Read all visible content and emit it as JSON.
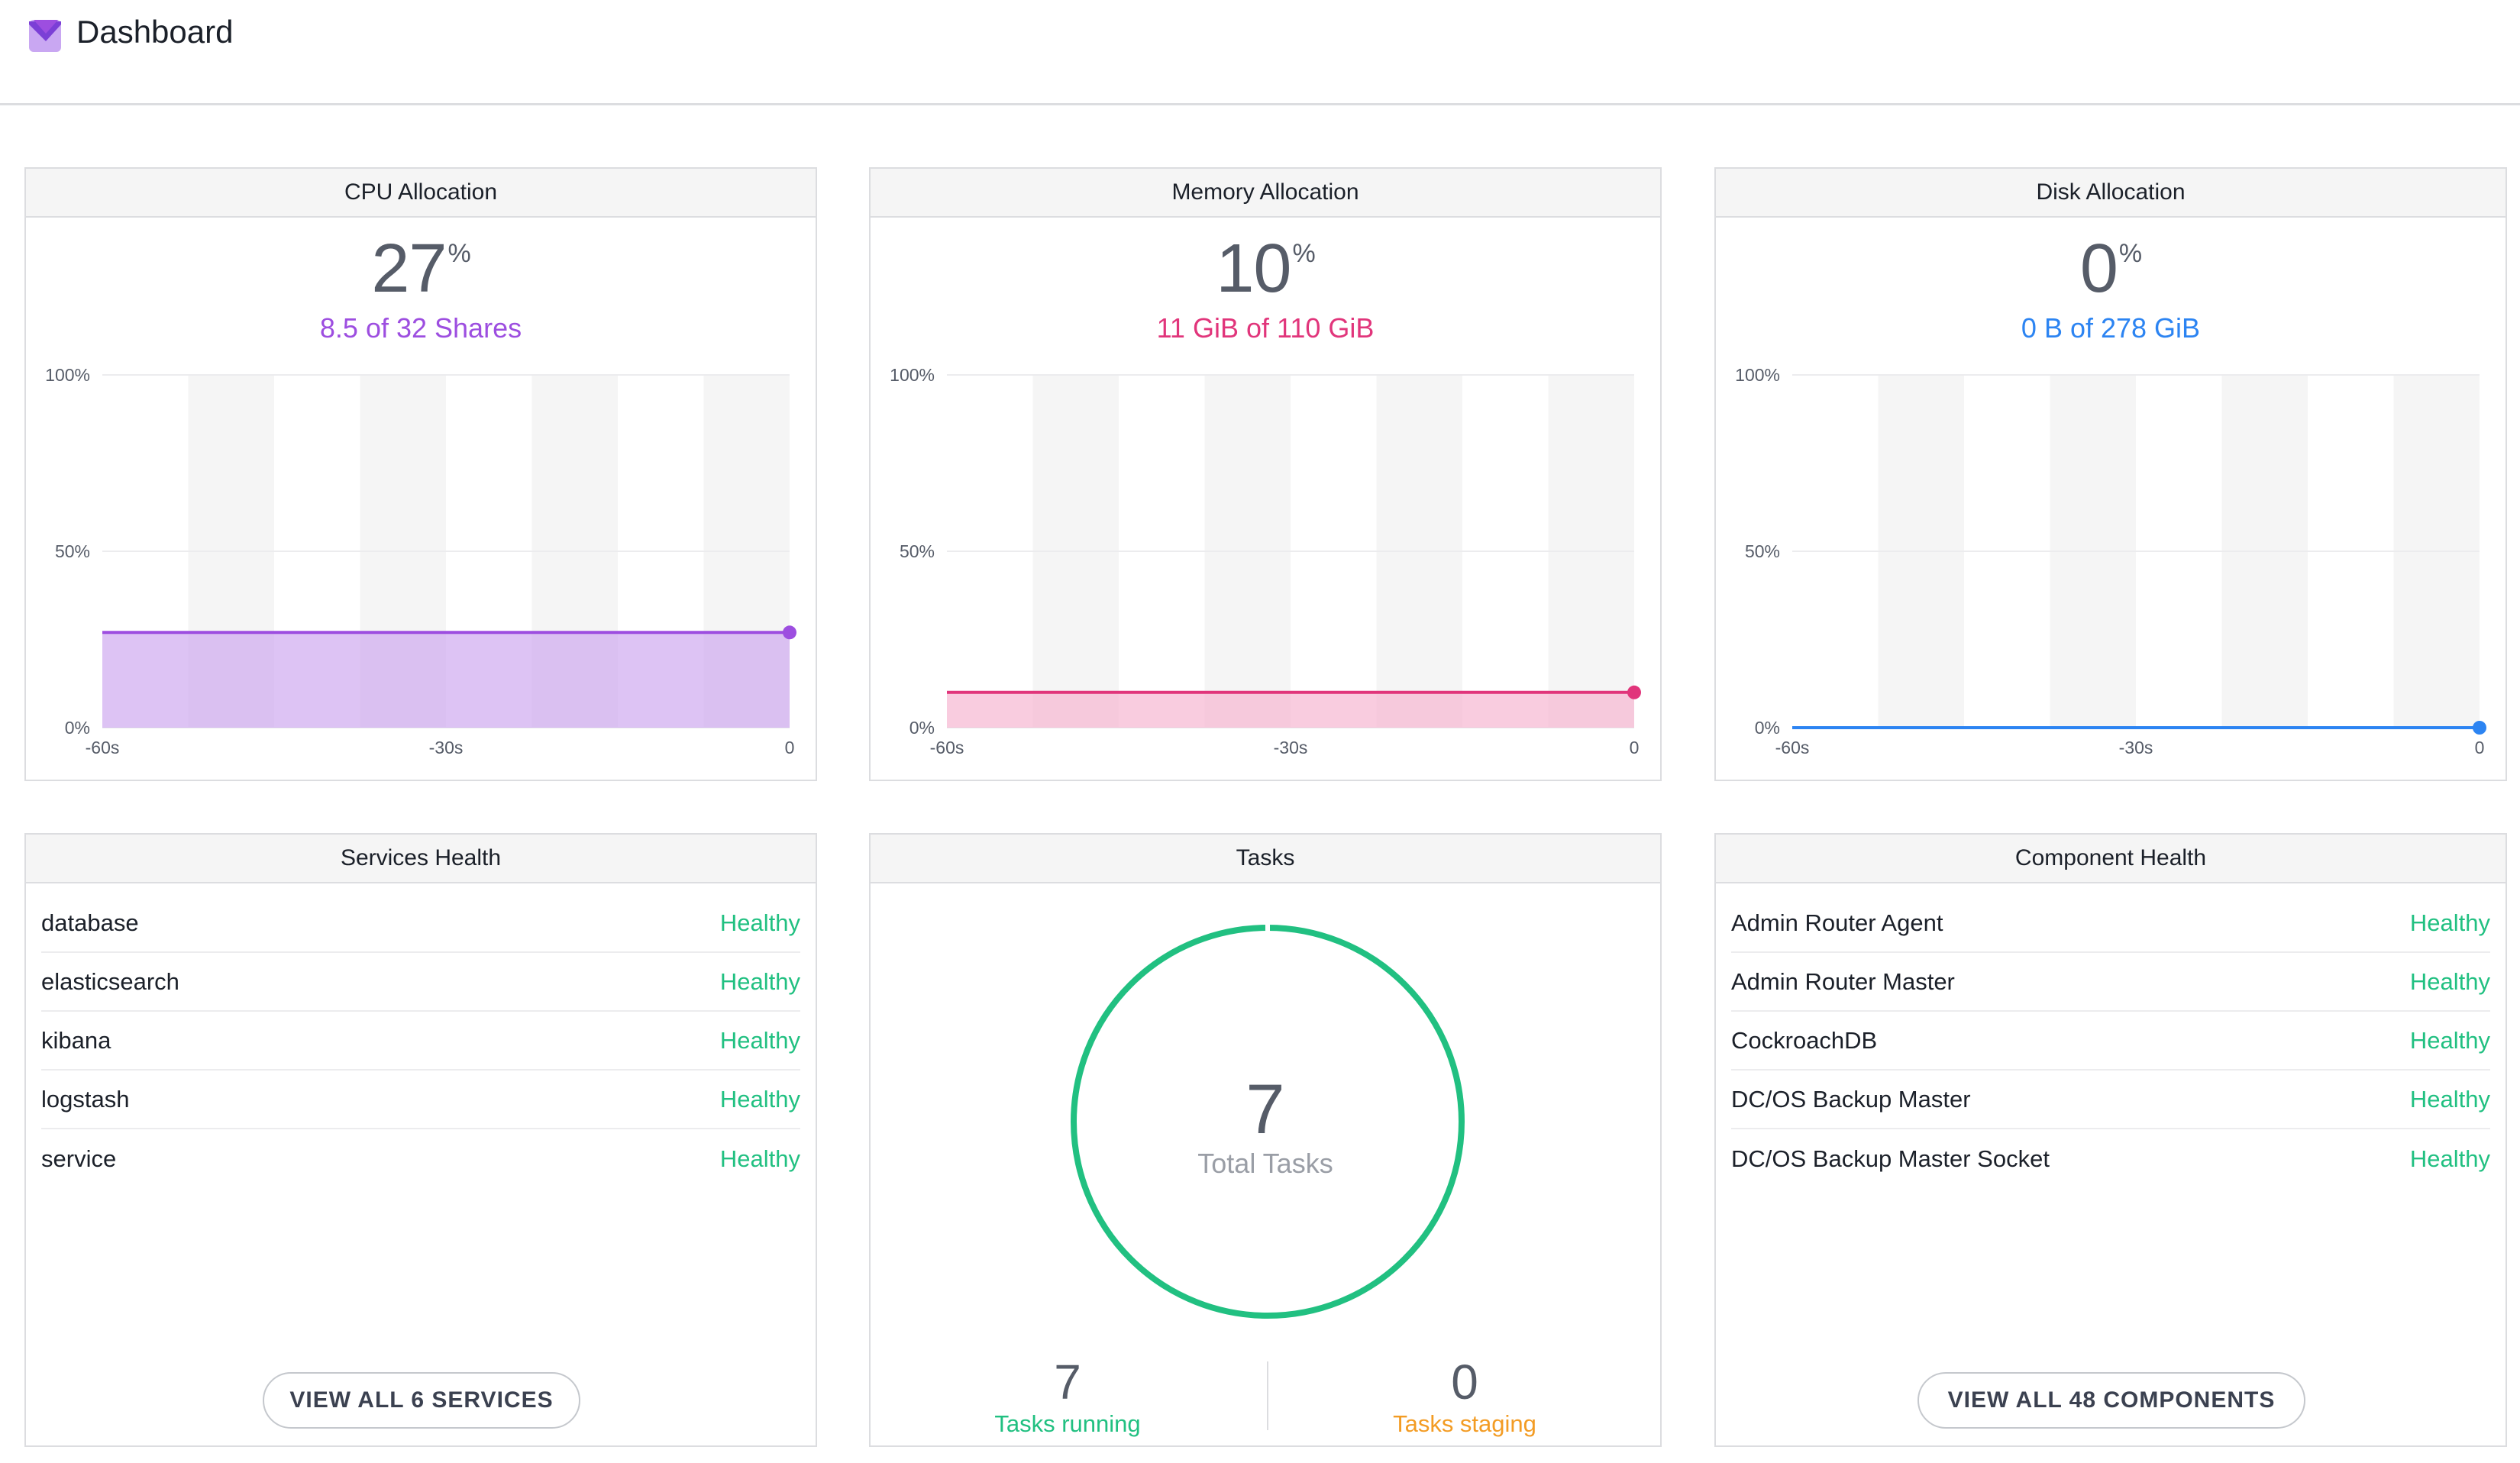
{
  "header": {
    "title": "Dashboard",
    "logo_icon": "dcos-logo-icon"
  },
  "colors": {
    "cpu": "#9d4ee0",
    "memory": "#e1357b",
    "disk": "#2c84f2",
    "healthy": "#21c081",
    "staging": "#f39c24"
  },
  "cpu": {
    "title": "CPU Allocation",
    "value": "27",
    "unit": "%",
    "detail": "8.5 of 32 Shares",
    "chart_data": {
      "type": "area",
      "x_ticks": [
        "-60s",
        "-30s",
        "0"
      ],
      "y_ticks": [
        "100%",
        "50%",
        "0%"
      ],
      "x": [
        -60,
        0
      ],
      "values": [
        27,
        27
      ],
      "ylim": [
        0,
        100
      ]
    }
  },
  "memory": {
    "title": "Memory Allocation",
    "value": "10",
    "unit": "%",
    "detail": "11 GiB of 110 GiB",
    "chart_data": {
      "type": "area",
      "x_ticks": [
        "-60s",
        "-30s",
        "0"
      ],
      "y_ticks": [
        "100%",
        "50%",
        "0%"
      ],
      "x": [
        -60,
        0
      ],
      "values": [
        10,
        10
      ],
      "ylim": [
        0,
        100
      ]
    }
  },
  "disk": {
    "title": "Disk Allocation",
    "value": "0",
    "unit": "%",
    "detail": "0 B of 278 GiB",
    "chart_data": {
      "type": "area",
      "x_ticks": [
        "-60s",
        "-30s",
        "0"
      ],
      "y_ticks": [
        "100%",
        "50%",
        "0%"
      ],
      "x": [
        -60,
        0
      ],
      "values": [
        0,
        0
      ],
      "ylim": [
        0,
        100
      ]
    }
  },
  "services": {
    "title": "Services Health",
    "items": [
      {
        "name": "database",
        "status": "Healthy"
      },
      {
        "name": "elasticsearch",
        "status": "Healthy"
      },
      {
        "name": "kibana",
        "status": "Healthy"
      },
      {
        "name": "logstash",
        "status": "Healthy"
      },
      {
        "name": "service",
        "status": "Healthy"
      }
    ],
    "button_label": "VIEW ALL 6 SERVICES"
  },
  "tasks": {
    "title": "Tasks",
    "total": "7",
    "total_label": "Total Tasks",
    "running": "7",
    "running_label": "Tasks running",
    "staging": "0",
    "staging_label": "Tasks staging"
  },
  "components": {
    "title": "Component Health",
    "items": [
      {
        "name": "Admin Router Agent",
        "status": "Healthy"
      },
      {
        "name": "Admin Router Master",
        "status": "Healthy"
      },
      {
        "name": "CockroachDB",
        "status": "Healthy"
      },
      {
        "name": "DC/OS Backup Master",
        "status": "Healthy"
      },
      {
        "name": "DC/OS Backup Master Socket",
        "status": "Healthy"
      }
    ],
    "button_label": "VIEW ALL 48 COMPONENTS"
  }
}
